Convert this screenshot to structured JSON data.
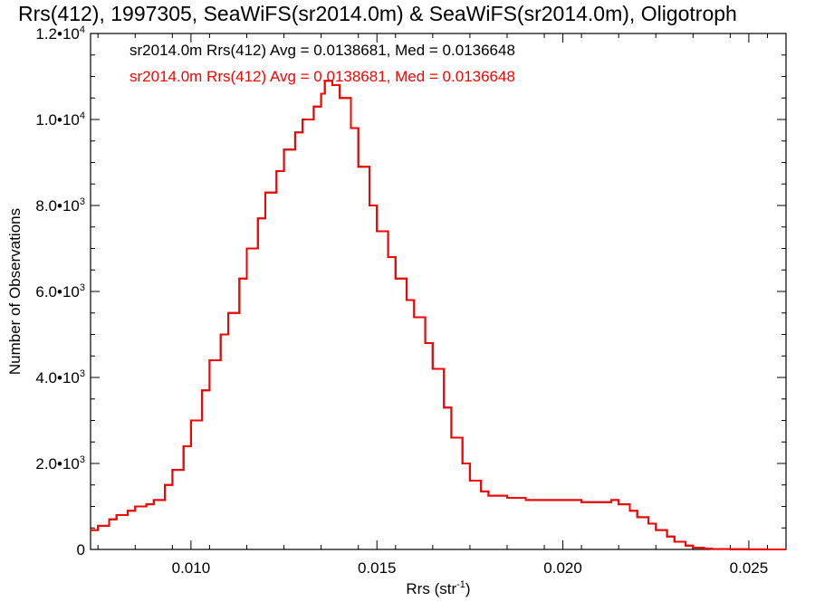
{
  "chart_data": {
    "type": "line",
    "title": "Rrs(412), 1997305, SeaWiFS(sr2014.0m) & SeaWiFS(sr2014.0m), Oligotroph",
    "xlabel": "Rrs (str",
    "xlabel_sup": "-1",
    "xlabel_close": ")",
    "ylabel": "Number of Observations",
    "xlim": [
      0.0073,
      0.026
    ],
    "ylim": [
      0,
      12000
    ],
    "x_ticks": [
      {
        "value": 0.01,
        "label": "0.010"
      },
      {
        "value": 0.015,
        "label": "0.015"
      },
      {
        "value": 0.02,
        "label": "0.020"
      },
      {
        "value": 0.025,
        "label": "0.025"
      }
    ],
    "y_ticks": [
      {
        "value": 0,
        "mant": "0",
        "exp": ""
      },
      {
        "value": 2000,
        "mant": "2.0•10",
        "exp": "3"
      },
      {
        "value": 4000,
        "mant": "4.0•10",
        "exp": "3"
      },
      {
        "value": 6000,
        "mant": "6.0•10",
        "exp": "3"
      },
      {
        "value": 8000,
        "mant": "8.0•10",
        "exp": "3"
      },
      {
        "value": 10000,
        "mant": "1.0•10",
        "exp": "4"
      },
      {
        "value": 12000,
        "mant": "1.2•10",
        "exp": "4"
      }
    ],
    "annotations": [
      {
        "text": "sr2014.0m Rrs(412) Avg = 0.0138681, Med = 0.0136648",
        "color": "#000000"
      },
      {
        "text": "sr2014.0m Rrs(412) Avg = 0.0138681, Med = 0.0136648",
        "color": "#ff0000"
      }
    ],
    "grid": false,
    "series": [
      {
        "color": "#000000",
        "x": [
          0.0073,
          0.0075,
          0.0078,
          0.008,
          0.0083,
          0.0085,
          0.0088,
          0.009,
          0.0093,
          0.0095,
          0.0098,
          0.01,
          0.0103,
          0.0105,
          0.0108,
          0.011,
          0.0113,
          0.0115,
          0.0118,
          0.012,
          0.0123,
          0.0125,
          0.0128,
          0.013,
          0.0133,
          0.0135,
          0.0136,
          0.0138,
          0.014,
          0.0143,
          0.0145,
          0.0148,
          0.015,
          0.0153,
          0.0155,
          0.0158,
          0.016,
          0.0163,
          0.0165,
          0.0168,
          0.017,
          0.0173,
          0.0175,
          0.0178,
          0.018,
          0.0185,
          0.019,
          0.0195,
          0.02,
          0.0205,
          0.021,
          0.0213,
          0.0215,
          0.0218,
          0.022,
          0.0223,
          0.0225,
          0.0228,
          0.023,
          0.0233,
          0.0235,
          0.0238,
          0.024,
          0.0245,
          0.025,
          0.0255,
          0.026
        ],
        "y": [
          450,
          550,
          700,
          800,
          900,
          1000,
          1050,
          1150,
          1500,
          1850,
          2400,
          3000,
          3700,
          4400,
          5000,
          5500,
          6300,
          7000,
          7700,
          8300,
          8800,
          9300,
          9700,
          10000,
          10300,
          10600,
          10900,
          10800,
          10500,
          9800,
          8900,
          8000,
          7400,
          6800,
          6300,
          5800,
          5400,
          4800,
          4200,
          3300,
          2600,
          2000,
          1600,
          1350,
          1250,
          1200,
          1150,
          1150,
          1150,
          1100,
          1100,
          1150,
          1050,
          900,
          750,
          600,
          450,
          300,
          180,
          90,
          40,
          20,
          10,
          5,
          2,
          1,
          0
        ]
      },
      {
        "color": "#ff0000",
        "x": [
          0.0073,
          0.0075,
          0.0078,
          0.008,
          0.0083,
          0.0085,
          0.0088,
          0.009,
          0.0093,
          0.0095,
          0.0098,
          0.01,
          0.0103,
          0.0105,
          0.0108,
          0.011,
          0.0113,
          0.0115,
          0.0118,
          0.012,
          0.0123,
          0.0125,
          0.0128,
          0.013,
          0.0133,
          0.0135,
          0.0136,
          0.0138,
          0.014,
          0.0143,
          0.0145,
          0.0148,
          0.015,
          0.0153,
          0.0155,
          0.0158,
          0.016,
          0.0163,
          0.0165,
          0.0168,
          0.017,
          0.0173,
          0.0175,
          0.0178,
          0.018,
          0.0185,
          0.019,
          0.0195,
          0.02,
          0.0205,
          0.021,
          0.0213,
          0.0215,
          0.0218,
          0.022,
          0.0223,
          0.0225,
          0.0228,
          0.023,
          0.0233,
          0.0235,
          0.0238,
          0.024,
          0.0245,
          0.025,
          0.0255,
          0.026
        ],
        "y": [
          450,
          550,
          700,
          800,
          900,
          1000,
          1050,
          1150,
          1500,
          1850,
          2400,
          3000,
          3700,
          4400,
          5000,
          5500,
          6300,
          7000,
          7700,
          8300,
          8800,
          9300,
          9700,
          10000,
          10300,
          10600,
          10900,
          10800,
          10500,
          9800,
          8900,
          8000,
          7400,
          6800,
          6300,
          5800,
          5400,
          4800,
          4200,
          3300,
          2600,
          2000,
          1600,
          1350,
          1250,
          1200,
          1150,
          1150,
          1150,
          1100,
          1100,
          1150,
          1050,
          900,
          750,
          600,
          450,
          300,
          180,
          90,
          40,
          20,
          10,
          5,
          2,
          1,
          0
        ]
      }
    ]
  }
}
